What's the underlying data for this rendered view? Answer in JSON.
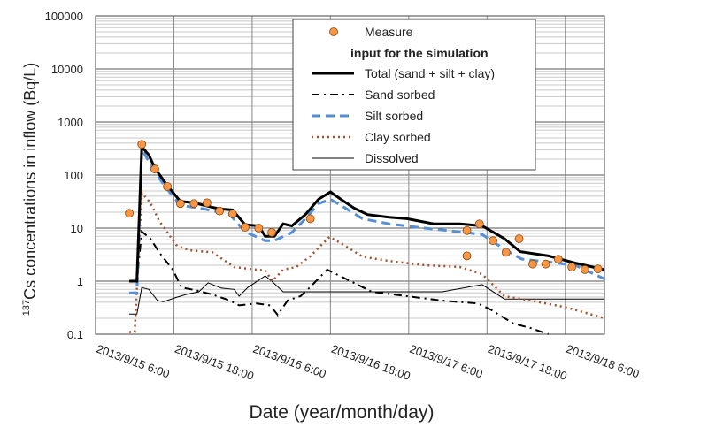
{
  "chart_data": {
    "type": "line",
    "title": "",
    "xlabel": "Date (year/month/day)",
    "ylabel_sup": "137",
    "ylabel": "Cs concentrations in inflow (Bq/L)",
    "y_scale": "log",
    "ylim": [
      0.1,
      100000
    ],
    "yticks": [
      "0.1",
      "1",
      "10",
      "100",
      "1000",
      "10000",
      "100000"
    ],
    "xlim": [
      "2013-09-15 06:00",
      "2013-09-18 12:00"
    ],
    "xticks": [
      {
        "date": "2013-09-15 06:00",
        "label": "2013/9/15 6:00"
      },
      {
        "date": "2013-09-15 18:00",
        "label": "2013/9/15 18:00"
      },
      {
        "date": "2013-09-16 06:00",
        "label": "2013/9/16 6:00"
      },
      {
        "date": "2013-09-16 18:00",
        "label": "2013/9/16 18:00"
      },
      {
        "date": "2013-09-17 06:00",
        "label": "2013/9/17 6:00"
      },
      {
        "date": "2013-09-17 18:00",
        "label": "2013/9/17 18:00"
      },
      {
        "date": "2013-09-18 06:00",
        "label": "2013/9/18 6:00"
      }
    ],
    "grid": true,
    "legend_placement": "top-center",
    "legend_heading": "input for the simulation",
    "measure": {
      "name": "Measure",
      "color": "#F79646",
      "points": [
        [
          "2013-09-15 11:10",
          19
        ],
        [
          "2013-09-15 13:05",
          380
        ],
        [
          "2013-09-15 15:05",
          130
        ],
        [
          "2013-09-15 17:00",
          61
        ],
        [
          "2013-09-15 19:00",
          29
        ],
        [
          "2013-09-15 21:05",
          29
        ],
        [
          "2013-09-15 23:05",
          30
        ],
        [
          "2013-09-16 01:00",
          21
        ],
        [
          "2013-09-16 03:00",
          18.5
        ],
        [
          "2013-09-16 04:55",
          10.4
        ],
        [
          "2013-09-16 07:00",
          10
        ],
        [
          "2013-09-16 09:00",
          8.3
        ],
        [
          "2013-09-16 14:55",
          15
        ],
        [
          "2013-09-17 14:55",
          9
        ],
        [
          "2013-09-17 14:55",
          3.0
        ],
        [
          "2013-09-17 16:50",
          12
        ],
        [
          "2013-09-17 18:55",
          5.8
        ],
        [
          "2013-09-17 20:55",
          3.5
        ],
        [
          "2013-09-17 22:55",
          6.3
        ],
        [
          "2013-09-18 01:00",
          2.1
        ],
        [
          "2013-09-18 03:00",
          2.1
        ],
        [
          "2013-09-18 04:55",
          2.6
        ],
        [
          "2013-09-18 07:00",
          1.85
        ],
        [
          "2013-09-18 09:00",
          1.65
        ],
        [
          "2013-09-18 11:00",
          1.7
        ]
      ]
    },
    "series": [
      {
        "name": "Total (sand + silt + clay)",
        "color": "#000000",
        "style": "solid-thick",
        "values": [
          [
            "2013-09-15 11:10",
            1
          ],
          [
            "2013-09-15 12:20",
            1
          ],
          [
            "2013-09-15 13:05",
            340
          ],
          [
            "2013-09-15 14:10",
            240
          ],
          [
            "2013-09-15 15:05",
            135
          ],
          [
            "2013-09-15 17:00",
            63
          ],
          [
            "2013-09-15 19:00",
            32
          ],
          [
            "2013-09-15 21:05",
            30
          ],
          [
            "2013-09-15 23:05",
            26
          ],
          [
            "2013-09-16 01:00",
            23
          ],
          [
            "2013-09-16 03:00",
            22
          ],
          [
            "2013-09-16 04:55",
            11.6
          ],
          [
            "2013-09-16 07:00",
            11
          ],
          [
            "2013-09-16 08:00",
            7
          ],
          [
            "2013-09-16 09:25",
            7
          ],
          [
            "2013-09-16 10:45",
            12
          ],
          [
            "2013-09-16 12:05",
            11
          ],
          [
            "2013-09-16 14:10",
            18
          ],
          [
            "2013-09-16 16:10",
            35
          ],
          [
            "2013-09-16 18:00",
            48
          ],
          [
            "2013-09-16 19:35",
            35
          ],
          [
            "2013-09-16 21:35",
            24
          ],
          [
            "2013-09-16 23:40",
            18
          ],
          [
            "2013-09-17 03:00",
            16
          ],
          [
            "2013-09-17 05:45",
            15
          ],
          [
            "2013-09-17 09:50",
            12
          ],
          [
            "2013-09-17 13:50",
            12
          ],
          [
            "2013-09-17 17:15",
            11
          ],
          [
            "2013-09-17 20:40",
            6.3
          ],
          [
            "2013-09-17 23:05",
            3.6
          ],
          [
            "2013-09-18 03:25",
            3
          ],
          [
            "2013-09-18 07:30",
            2.2
          ],
          [
            "2013-09-18 12:00",
            1.65
          ]
        ]
      },
      {
        "name": "Sand sorbed",
        "color": "#000000",
        "style": "dash-dot",
        "values": [
          [
            "2013-09-15 11:10",
            1
          ],
          [
            "2013-09-15 12:20",
            1
          ],
          [
            "2013-09-15 13:05",
            8.6
          ],
          [
            "2013-09-15 14:25",
            6.3
          ],
          [
            "2013-09-15 15:45",
            3.5
          ],
          [
            "2013-09-15 17:50",
            1.65
          ],
          [
            "2013-09-15 19:10",
            0.76
          ],
          [
            "2013-09-15 21:10",
            0.68
          ],
          [
            "2013-09-15 23:55",
            0.56
          ],
          [
            "2013-09-16 02:35",
            0.43
          ],
          [
            "2013-09-16 04:00",
            0.35
          ],
          [
            "2013-09-16 06:40",
            0.38
          ],
          [
            "2013-09-16 08:45",
            0.35
          ],
          [
            "2013-09-16 09:55",
            0.23
          ],
          [
            "2013-09-16 11:25",
            0.43
          ],
          [
            "2013-09-16 13:25",
            0.52
          ],
          [
            "2013-09-16 14:50",
            0.76
          ],
          [
            "2013-09-16 17:30",
            1.65
          ],
          [
            "2013-09-16 20:15",
            1.12
          ],
          [
            "2013-09-17 00:20",
            0.63
          ],
          [
            "2013-09-17 05:45",
            0.52
          ],
          [
            "2013-09-17 11:10",
            0.43
          ],
          [
            "2013-09-17 16:35",
            0.38
          ],
          [
            "2013-09-17 18:35",
            0.29
          ],
          [
            "2013-09-17 22:00",
            0.16
          ],
          [
            "2013-09-18 00:45",
            0.13
          ],
          [
            "2013-09-18 03:25",
            0.1
          ]
        ]
      },
      {
        "name": "Silt sorbed",
        "color": "#558ED5",
        "style": "dashed",
        "values": [
          [
            "2013-09-15 11:10",
            0.6
          ],
          [
            "2013-09-15 12:20",
            0.6
          ],
          [
            "2013-09-15 13:05",
            310
          ],
          [
            "2013-09-15 15:05",
            112
          ],
          [
            "2013-09-15 17:05",
            52
          ],
          [
            "2013-09-15 19:00",
            27
          ],
          [
            "2013-09-15 22:35",
            23
          ],
          [
            "2013-09-16 02:35",
            18
          ],
          [
            "2013-09-16 04:55",
            8.5
          ],
          [
            "2013-09-16 08:00",
            5.8
          ],
          [
            "2013-09-16 09:25",
            5.8
          ],
          [
            "2013-09-16 12:05",
            8.3
          ],
          [
            "2013-09-16 14:10",
            15
          ],
          [
            "2013-09-16 16:10",
            29
          ],
          [
            "2013-09-16 18:00",
            35
          ],
          [
            "2013-09-16 20:15",
            24
          ],
          [
            "2013-09-16 22:55",
            15
          ],
          [
            "2013-09-17 03:00",
            12
          ],
          [
            "2013-09-17 08:25",
            10
          ],
          [
            "2013-09-17 13:50",
            8.5
          ],
          [
            "2013-09-17 17:15",
            7.6
          ],
          [
            "2013-09-17 20:40",
            4
          ],
          [
            "2013-09-17 23:20",
            2.6
          ],
          [
            "2013-09-18 03:25",
            2.3
          ],
          [
            "2013-09-18 07:30",
            2
          ],
          [
            "2013-09-18 12:00",
            1.1
          ]
        ]
      },
      {
        "name": "Clay sorbed",
        "color": "#A0522D",
        "style": "dotted",
        "values": [
          [
            "2013-09-15 11:10",
            0.11
          ],
          [
            "2013-09-15 12:00",
            0.11
          ],
          [
            "2013-09-15 13:05",
            46
          ],
          [
            "2013-09-15 14:25",
            30
          ],
          [
            "2013-09-15 15:45",
            13.6
          ],
          [
            "2013-09-15 18:30",
            4.6
          ],
          [
            "2013-09-15 20:30",
            3.8
          ],
          [
            "2013-09-15 23:55",
            3.5
          ],
          [
            "2013-09-16 01:15",
            2.7
          ],
          [
            "2013-09-16 03:15",
            1.85
          ],
          [
            "2013-09-16 06:40",
            1.65
          ],
          [
            "2013-09-16 08:00",
            1.6
          ],
          [
            "2013-09-16 09:05",
            1
          ],
          [
            "2013-09-16 10:45",
            1.65
          ],
          [
            "2013-09-16 12:45",
            1.85
          ],
          [
            "2013-09-16 14:50",
            2.9
          ],
          [
            "2013-09-16 17:50",
            6.8
          ],
          [
            "2013-09-16 19:35",
            5.2
          ],
          [
            "2013-09-16 22:55",
            2.9
          ],
          [
            "2013-09-17 03:00",
            2.4
          ],
          [
            "2013-09-17 08:25",
            2
          ],
          [
            "2013-09-17 13:50",
            1.85
          ],
          [
            "2013-09-17 17:15",
            1.36
          ],
          [
            "2013-09-17 20:40",
            0.52
          ],
          [
            "2013-09-18 00:45",
            0.43
          ],
          [
            "2013-09-18 06:10",
            0.32
          ],
          [
            "2013-09-18 12:00",
            0.2
          ]
        ]
      },
      {
        "name": "Dissolved",
        "color": "#000000",
        "style": "solid-thin",
        "values": [
          [
            "2013-09-15 11:10",
            0.24
          ],
          [
            "2013-09-15 12:20",
            0.24
          ],
          [
            "2013-09-15 13:05",
            0.76
          ],
          [
            "2013-09-15 14:10",
            0.7
          ],
          [
            "2013-09-15 15:30",
            0.43
          ],
          [
            "2013-09-15 16:25",
            0.41
          ],
          [
            "2013-09-15 18:30",
            0.5
          ],
          [
            "2013-09-15 19:50",
            0.56
          ],
          [
            "2013-09-15 21:50",
            0.63
          ],
          [
            "2013-09-15 23:15",
            0.93
          ],
          [
            "2013-09-16 01:15",
            0.74
          ],
          [
            "2013-09-16 03:15",
            0.7
          ],
          [
            "2013-09-16 04:00",
            0.52
          ],
          [
            "2013-09-16 05:20",
            0.76
          ],
          [
            "2013-09-16 08:00",
            1.26
          ],
          [
            "2013-09-16 09:00",
            1
          ],
          [
            "2013-09-16 10:45",
            0.63
          ],
          [
            "2013-09-16 14:10",
            0.63
          ],
          [
            "2013-09-17 03:00",
            0.63
          ],
          [
            "2013-09-17 11:10",
            0.63
          ],
          [
            "2013-09-17 17:15",
            0.86
          ],
          [
            "2013-09-17 20:40",
            0.46
          ],
          [
            "2013-09-18 12:00",
            0.46
          ]
        ]
      }
    ]
  }
}
